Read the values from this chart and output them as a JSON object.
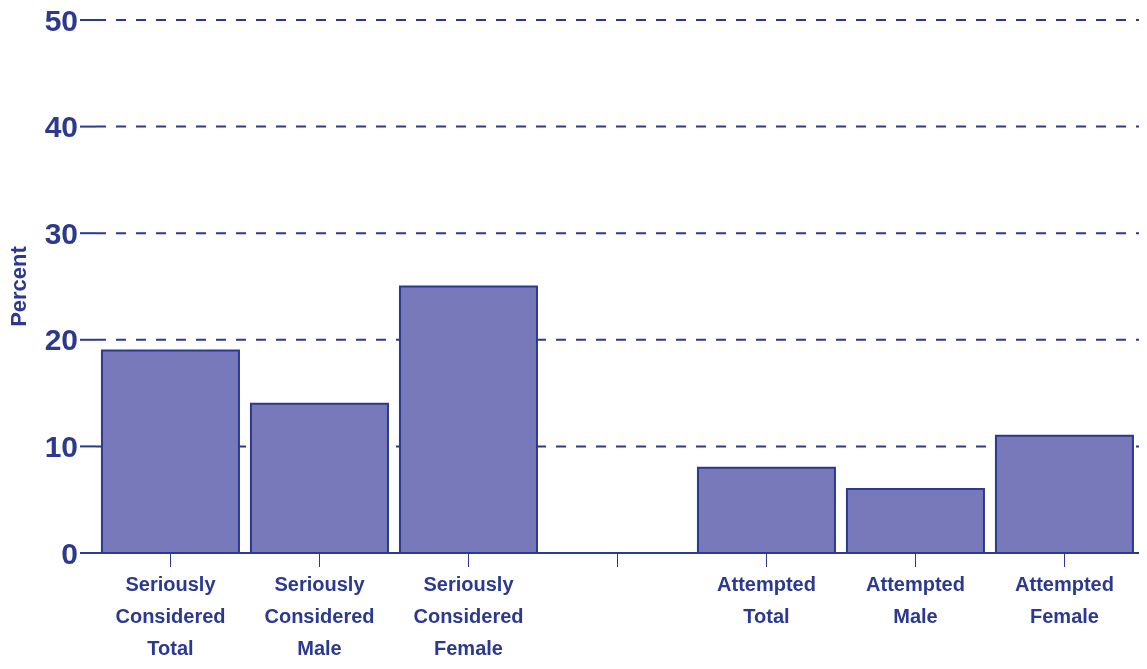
{
  "chart_data": {
    "type": "bar",
    "ylabel": "Percent",
    "categories": [
      "Seriously Considered Total",
      "Seriously Considered Male",
      "Seriously Considered Female",
      null,
      "Attempted Total",
      "Attempted Male",
      "Attempted Female"
    ],
    "values": [
      19,
      14,
      25,
      null,
      8,
      6,
      11
    ],
    "color": "#7779bb",
    "ylim": [
      0,
      50
    ],
    "yticks": [
      0,
      10,
      20,
      30,
      40,
      50
    ],
    "grid": "y"
  }
}
